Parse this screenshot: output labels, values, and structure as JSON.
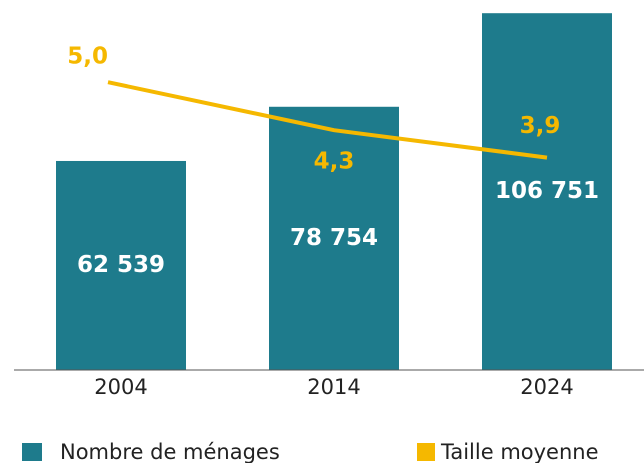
{
  "chart_data": {
    "type": "bar",
    "categories": [
      "2004",
      "2014",
      "2024"
    ],
    "series": [
      {
        "name": "Nombre de ménages",
        "color": "#1e7b8c",
        "values": [
          62539,
          78754,
          106751
        ],
        "value_labels": [
          "62 539",
          "78 754",
          "106 751"
        ]
      },
      {
        "name": "Taille moyenne",
        "type": "line",
        "axis": "y2",
        "color": "#f5b800",
        "values": [
          5.0,
          4.3,
          3.9
        ],
        "value_labels": [
          "5,0",
          "4,3",
          "3,9"
        ]
      }
    ],
    "ylim": [
      0,
      110700
    ],
    "y2lim": [
      0.8,
      6.2
    ],
    "legend": "bottom"
  }
}
